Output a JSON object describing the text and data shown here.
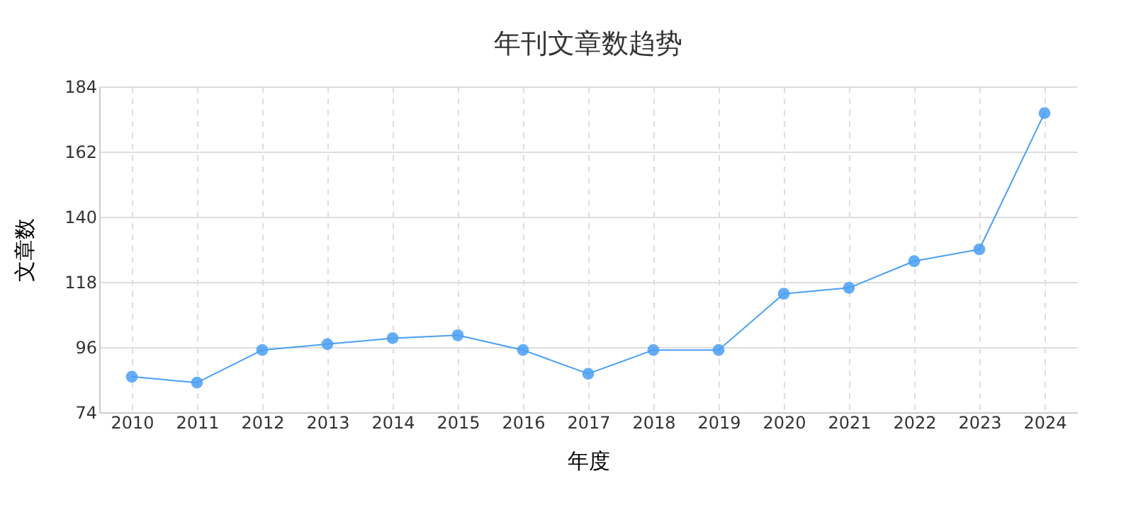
{
  "chart_data": {
    "type": "line",
    "title": "年刊文章数趋势",
    "xlabel": "年度",
    "ylabel": "文章数",
    "categories": [
      "2010",
      "2011",
      "2012",
      "2013",
      "2014",
      "2015",
      "2016",
      "2017",
      "2018",
      "2019",
      "2020",
      "2021",
      "2022",
      "2023",
      "2024"
    ],
    "series": [
      {
        "color": "#4a9ff5",
        "values": [
          86,
          84,
          95,
          97,
          99,
          100,
          95,
          87,
          95,
          95,
          114,
          116,
          125,
          129,
          175
        ]
      }
    ],
    "ylim": [
      74,
      184
    ],
    "yticks": [
      74,
      96,
      118,
      140,
      162,
      184
    ],
    "grid": true,
    "marker": "circle",
    "line_style": "solid"
  }
}
